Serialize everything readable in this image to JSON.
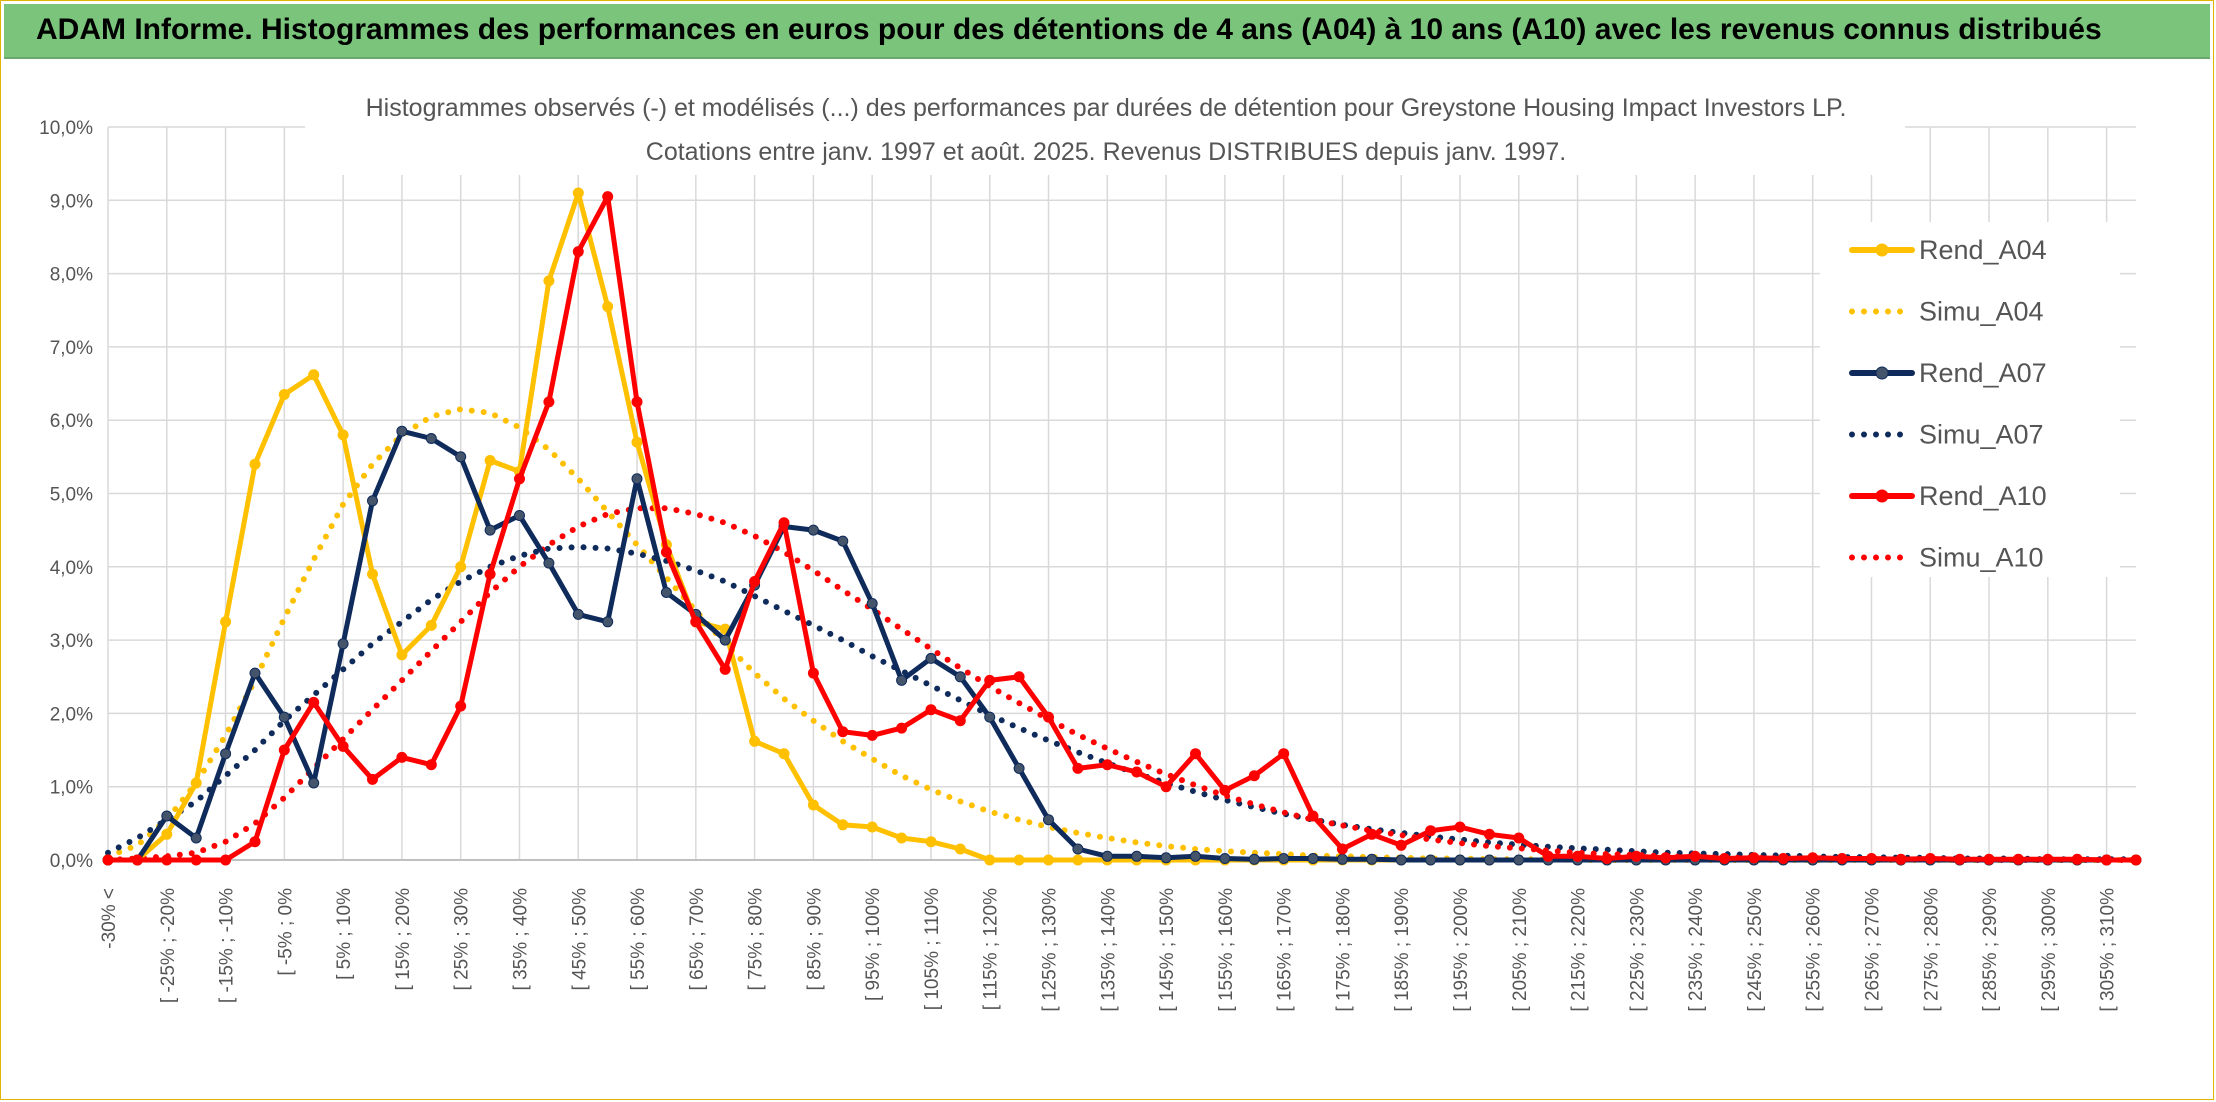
{
  "header": {
    "title": "ADAM Informe. Histogrammes des performances en euros pour des détentions de 4 ans (A04) à 10 ans (A10) avec les revenus connus distribués"
  },
  "chart_data": {
    "type": "line",
    "title": "Histogrammes observés (-) et modélisés (...) des performances par durées de détention pour Greystone Housing Impact Investors LP.",
    "subtitle": "Cotations entre janv. 1997 et août. 2025. Revenus DISTRIBUES depuis janv. 1997.",
    "xlabel": "",
    "ylabel": "",
    "ylim": [
      0,
      10
    ],
    "grid": true,
    "legend_position": "right",
    "y_ticks": [
      "0,0%",
      "1,0%",
      "2,0%",
      "3,0%",
      "4,0%",
      "5,0%",
      "6,0%",
      "7,0%",
      "8,0%",
      "9,0%",
      "10,0%"
    ],
    "x_tick_labels": [
      "-30% <",
      "[ -25% ; -20%",
      "[ -15% ; -10%",
      "[ -5% ; 0%",
      "[ 5% ; 10%",
      "[ 15% ; 20%",
      "[ 25% ; 30%",
      "[ 35% ; 40%",
      "[ 45% ; 50%",
      "[ 55% ; 60%",
      "[ 65% ; 70%",
      "[ 75% ; 80%",
      "[ 85% ; 90%",
      "[ 95% ; 100%",
      "[ 105% ; 110%",
      "[ 115% ; 120%",
      "[ 125% ; 130%",
      "[ 135% ; 140%",
      "[ 145% ; 150%",
      "[ 155% ; 160%",
      "[ 165% ; 170%",
      "[ 175% ; 180%",
      "[ 185% ; 190%",
      "[ 195% ; 200%",
      "[ 205% ; 210%",
      "[ 215% ; 220%",
      "[ 225% ; 230%",
      "[ 235% ; 240%",
      "[ 245% ; 250%",
      "[ 255% ; 260%",
      "[ 265% ; 270%",
      "[ 275% ; 280%",
      "[ 285% ; 290%",
      "[ 295% ; 300%",
      "[ 305% ; 310%"
    ],
    "series": [
      {
        "name": "Rend_A04",
        "style": "solid",
        "color": "#ffc000",
        "markers": true,
        "values": [
          0,
          0,
          0.35,
          1.05,
          3.25,
          5.4,
          6.35,
          6.62,
          5.8,
          3.9,
          2.8,
          3.2,
          4.0,
          5.45,
          5.3,
          7.9,
          9.1,
          7.55,
          5.7,
          4.3,
          3.25,
          3.15,
          1.62,
          1.45,
          0.75,
          0.48,
          0.45,
          0.3,
          0.25,
          0.15,
          0,
          0,
          0,
          0,
          0,
          0,
          0,
          0,
          0,
          0,
          0,
          0,
          0,
          0,
          0,
          0,
          0,
          0,
          0,
          0,
          0,
          0,
          0,
          0,
          0,
          0,
          0,
          0,
          0,
          0,
          0,
          0,
          0,
          0,
          0,
          0,
          0,
          0,
          0,
          0
        ]
      },
      {
        "name": "Simu_A04",
        "style": "dotted",
        "color": "#ffc000",
        "markers": false,
        "values": [
          0.05,
          0.2,
          0.55,
          1.05,
          1.7,
          2.45,
          3.3,
          4.1,
          4.85,
          5.4,
          5.8,
          6.05,
          6.15,
          6.1,
          5.9,
          5.6,
          5.2,
          4.75,
          4.3,
          3.85,
          3.4,
          2.95,
          2.55,
          2.2,
          1.9,
          1.62,
          1.38,
          1.15,
          0.96,
          0.8,
          0.66,
          0.55,
          0.45,
          0.37,
          0.3,
          0.24,
          0.19,
          0.15,
          0.12,
          0.1,
          0.08,
          0.06,
          0.05,
          0.04,
          0.03,
          0.02,
          0.02,
          0.01,
          0.01,
          0.01,
          0,
          0,
          0,
          0,
          0,
          0,
          0,
          0,
          0,
          0,
          0,
          0,
          0,
          0,
          0,
          0,
          0,
          0,
          0,
          0
        ]
      },
      {
        "name": "Rend_A07",
        "style": "solid",
        "color": "#0f2b5b",
        "markers": true,
        "values": [
          0,
          0,
          0.6,
          0.3,
          1.45,
          2.55,
          1.95,
          1.05,
          2.95,
          4.9,
          5.85,
          5.75,
          5.5,
          4.5,
          4.7,
          4.05,
          3.35,
          3.25,
          5.2,
          3.65,
          3.35,
          3.0,
          3.75,
          4.55,
          4.5,
          4.35,
          3.5,
          2.45,
          2.75,
          2.5,
          1.95,
          1.25,
          0.55,
          0.15,
          0.05,
          0.05,
          0.03,
          0.05,
          0.02,
          0.01,
          0.02,
          0.02,
          0.01,
          0.01,
          0,
          0,
          0,
          0,
          0,
          0,
          0,
          0,
          0,
          0,
          0,
          0,
          0,
          0,
          0,
          0,
          0,
          0,
          0,
          0,
          0,
          0,
          0,
          0,
          0,
          0
        ]
      },
      {
        "name": "Simu_A07",
        "style": "dotted",
        "color": "#0f2b5b",
        "markers": false,
        "values": [
          0.1,
          0.3,
          0.55,
          0.8,
          1.15,
          1.5,
          1.9,
          2.25,
          2.6,
          2.95,
          3.25,
          3.55,
          3.8,
          4.0,
          4.15,
          4.25,
          4.27,
          4.25,
          4.18,
          4.08,
          3.95,
          3.8,
          3.6,
          3.4,
          3.2,
          3.0,
          2.78,
          2.58,
          2.38,
          2.18,
          1.98,
          1.8,
          1.63,
          1.47,
          1.32,
          1.18,
          1.05,
          0.93,
          0.82,
          0.72,
          0.63,
          0.55,
          0.48,
          0.42,
          0.37,
          0.32,
          0.28,
          0.24,
          0.21,
          0.18,
          0.16,
          0.14,
          0.12,
          0.1,
          0.09,
          0.08,
          0.07,
          0.06,
          0.05,
          0.04,
          0.04,
          0.03,
          0.03,
          0.02,
          0.02,
          0.02,
          0.01,
          0.01,
          0.01,
          0.01
        ]
      },
      {
        "name": "Rend_A10",
        "style": "solid",
        "color": "#ff0000",
        "markers": true,
        "values": [
          0,
          0,
          0,
          0,
          0,
          0.25,
          1.5,
          2.15,
          1.55,
          1.1,
          1.4,
          1.3,
          2.1,
          3.9,
          5.2,
          6.25,
          8.3,
          9.05,
          6.25,
          4.2,
          3.25,
          2.6,
          3.8,
          4.6,
          2.55,
          1.75,
          1.7,
          1.8,
          2.05,
          1.9,
          2.45,
          2.5,
          1.95,
          1.25,
          1.3,
          1.2,
          1.0,
          1.45,
          0.95,
          1.15,
          1.45,
          0.6,
          0.15,
          0.35,
          0.2,
          0.4,
          0.45,
          0.35,
          0.3,
          0.05,
          0.05,
          0.02,
          0.05,
          0.03,
          0.05,
          0.02,
          0.03,
          0.02,
          0.03,
          0.02,
          0.02,
          0.01,
          0.02,
          0.01,
          0.01,
          0.01,
          0.01,
          0.01,
          0,
          0
        ]
      },
      {
        "name": "Simu_A10",
        "style": "dotted",
        "color": "#ff0000",
        "markers": false,
        "values": [
          0,
          0.02,
          0.05,
          0.1,
          0.25,
          0.5,
          0.85,
          1.25,
          1.65,
          2.05,
          2.45,
          2.85,
          3.25,
          3.65,
          4.0,
          4.3,
          4.55,
          4.72,
          4.8,
          4.8,
          4.72,
          4.6,
          4.42,
          4.2,
          3.95,
          3.68,
          3.42,
          3.15,
          2.88,
          2.62,
          2.37,
          2.14,
          1.92,
          1.71,
          1.52,
          1.34,
          1.17,
          1.02,
          0.88,
          0.76,
          0.65,
          0.55,
          0.47,
          0.4,
          0.34,
          0.28,
          0.23,
          0.19,
          0.16,
          0.13,
          0.1,
          0.08,
          0.07,
          0.05,
          0.04,
          0.03,
          0.03,
          0.02,
          0.02,
          0.01,
          0.01,
          0.01,
          0.01,
          0,
          0,
          0,
          0,
          0,
          0,
          0
        ]
      }
    ]
  }
}
